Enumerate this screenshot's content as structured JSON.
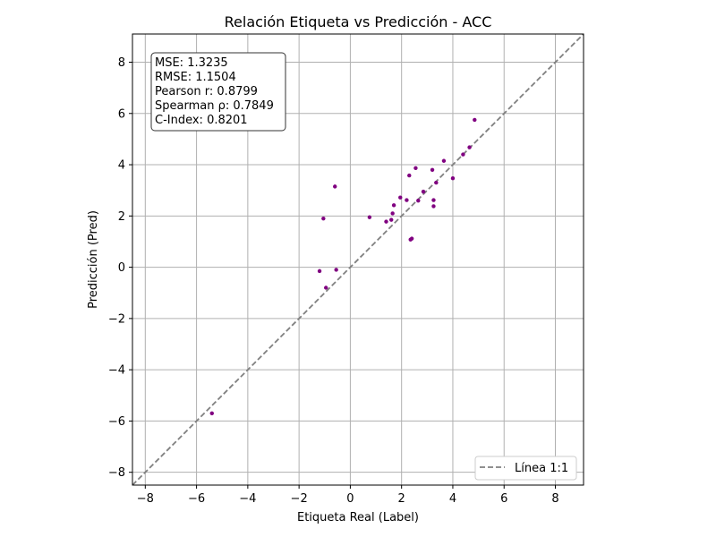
{
  "chart_data": {
    "type": "scatter",
    "title": "Relación Etiqueta vs Predicción - ACC",
    "xlabel": "Etiqueta Real (Label)",
    "ylabel": "Predicción (Pred)",
    "xlim": [
      -8.5,
      9.1
    ],
    "ylim": [
      -8.5,
      9.1
    ],
    "xticks": [
      -8,
      -6,
      -4,
      -2,
      0,
      2,
      4,
      6,
      8
    ],
    "yticks": [
      -8,
      -6,
      -4,
      -2,
      0,
      2,
      4,
      6,
      8
    ],
    "tick_labels": [
      "−8",
      "−6",
      "−4",
      "−2",
      "0",
      "2",
      "4",
      "6",
      "8"
    ],
    "grid": true,
    "colors": {
      "points": "#800080",
      "reference_line": "#808080",
      "grid": "#b0b0b0"
    },
    "points": [
      {
        "x": -5.4,
        "y": -5.7
      },
      {
        "x": -1.2,
        "y": -0.15
      },
      {
        "x": -0.95,
        "y": -0.8
      },
      {
        "x": -0.55,
        "y": -0.1
      },
      {
        "x": -1.05,
        "y": 1.9
      },
      {
        "x": -0.6,
        "y": 3.15
      },
      {
        "x": 0.75,
        "y": 1.95
      },
      {
        "x": 1.4,
        "y": 1.78
      },
      {
        "x": 1.6,
        "y": 1.85
      },
      {
        "x": 1.65,
        "y": 2.1
      },
      {
        "x": 1.7,
        "y": 2.42
      },
      {
        "x": 1.95,
        "y": 2.72
      },
      {
        "x": 2.2,
        "y": 2.62
      },
      {
        "x": 2.3,
        "y": 3.58
      },
      {
        "x": 2.35,
        "y": 1.08
      },
      {
        "x": 2.4,
        "y": 1.12
      },
      {
        "x": 2.55,
        "y": 3.87
      },
      {
        "x": 2.65,
        "y": 2.6
      },
      {
        "x": 2.85,
        "y": 2.95
      },
      {
        "x": 3.2,
        "y": 3.8
      },
      {
        "x": 3.25,
        "y": 2.62
      },
      {
        "x": 3.25,
        "y": 2.38
      },
      {
        "x": 3.35,
        "y": 3.3
      },
      {
        "x": 3.65,
        "y": 4.15
      },
      {
        "x": 4.0,
        "y": 3.47
      },
      {
        "x": 4.4,
        "y": 4.4
      },
      {
        "x": 4.65,
        "y": 4.68
      },
      {
        "x": 4.85,
        "y": 5.75
      }
    ],
    "reference_line": {
      "label": "Línea 1:1",
      "style": "dashed"
    },
    "legend": {
      "position": "lower-right",
      "entries": [
        "Línea 1:1"
      ]
    },
    "annotation": {
      "position": "upper-left",
      "lines": [
        "MSE: 1.3235",
        "RMSE: 1.1504",
        "Pearson r: 0.8799",
        "Spearman ρ: 0.7849",
        "C-Index: 0.8201"
      ]
    }
  }
}
